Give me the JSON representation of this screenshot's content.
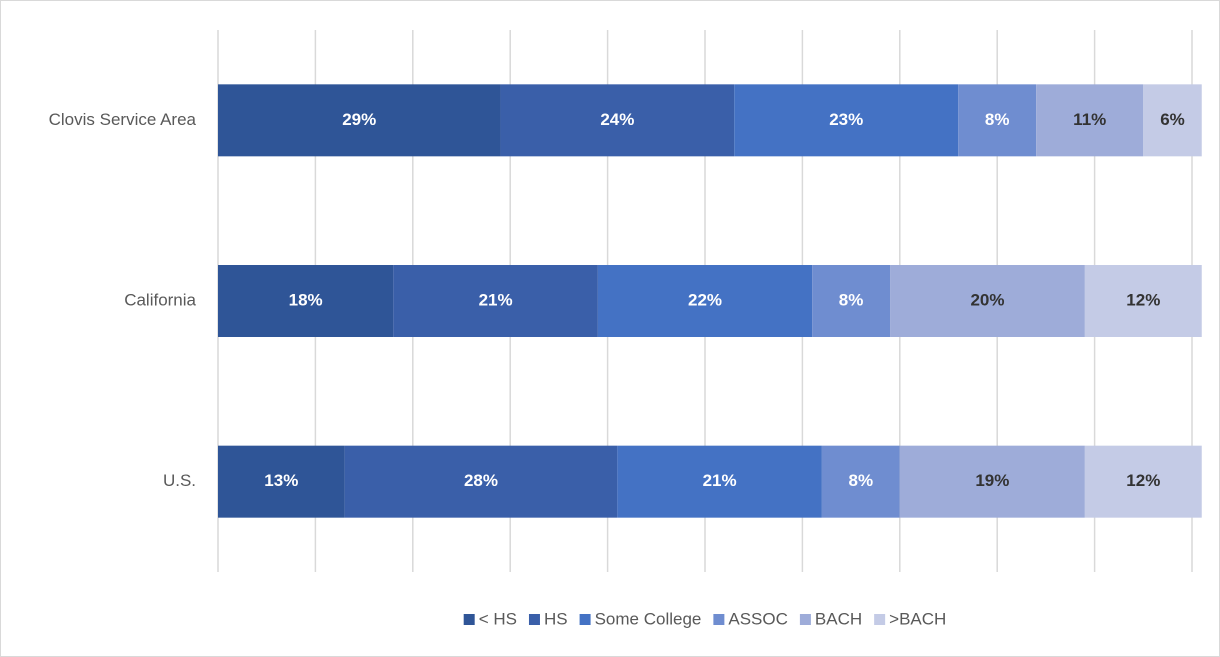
{
  "chart_data": {
    "type": "stacked_bar_horizontal",
    "categories": [
      "Clovis Service Area",
      "California",
      "U.S."
    ],
    "series": [
      {
        "name": "< HS",
        "color": "#2f5597",
        "label_color": "#ffffff",
        "values": [
          29,
          18,
          13
        ],
        "value_labels": [
          "29%",
          "18%",
          "13%"
        ]
      },
      {
        "name": "HS",
        "color": "#3a5fa9",
        "label_color": "#ffffff",
        "values": [
          24,
          21,
          28
        ],
        "value_labels": [
          "24%",
          "21%",
          "28%"
        ]
      },
      {
        "name": "Some College",
        "color": "#4472c4",
        "label_color": "#ffffff",
        "values": [
          23,
          22,
          21
        ],
        "value_labels": [
          "23%",
          "22%",
          "21%"
        ]
      },
      {
        "name": "ASSOC",
        "color": "#6f8dd0",
        "label_color": "#ffffff",
        "values": [
          8,
          8,
          8
        ],
        "value_labels": [
          "8%",
          "8%",
          "8%"
        ]
      },
      {
        "name": "BACH",
        "color": "#9eacd9",
        "label_color": "#333333",
        "values": [
          11,
          20,
          19
        ],
        "value_labels": [
          "11%",
          "20%",
          "19%"
        ]
      },
      {
        "name": ">BACH",
        "color": "#c4cbe6",
        "label_color": "#333333",
        "values": [
          6,
          12,
          12
        ],
        "value_labels": [
          "6%",
          "12%",
          "12%"
        ]
      }
    ],
    "xlim": [
      0,
      100
    ],
    "xticks": [
      0,
      10,
      20,
      30,
      40,
      50,
      60,
      70,
      80,
      90,
      100
    ],
    "grid": true,
    "tick_labels": false,
    "legend": "bottom"
  }
}
